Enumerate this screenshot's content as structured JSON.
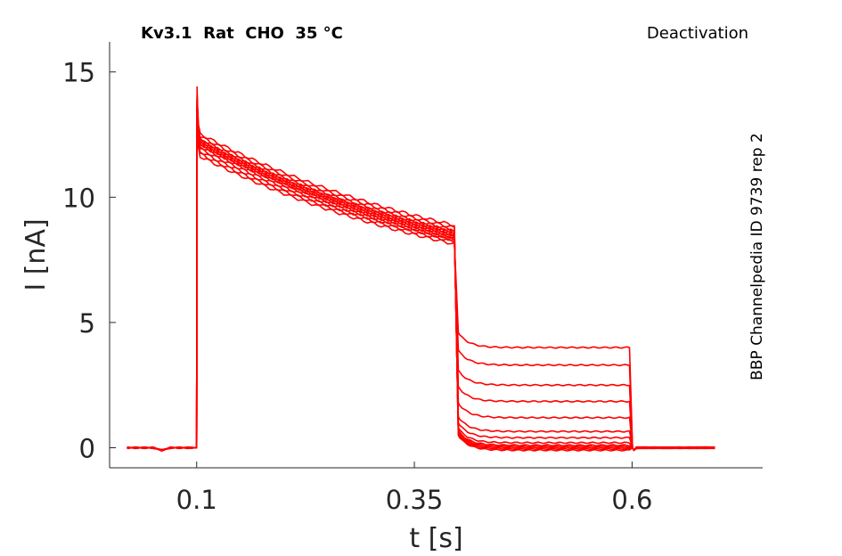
{
  "chart_data": {
    "type": "line",
    "title": "Kv3.1  Rat  CHO  35 °C",
    "protocol": "Deactivation",
    "side_label": "BBP Channelpedia ID 9739 rep 2",
    "xlabel": "t [s]",
    "ylabel": "I [nA]",
    "xlim": [
      -0.0,
      0.75
    ],
    "ylim": [
      -0.8,
      16.2
    ],
    "x_ticks": [
      0.1,
      0.35,
      0.6
    ],
    "x_tick_labels": [
      "0.1",
      "0.35",
      "0.6"
    ],
    "y_ticks": [
      0,
      5,
      10,
      15
    ],
    "y_tick_labels": [
      "0",
      "5",
      "10",
      "15"
    ],
    "grid": false,
    "color": "#ff0000",
    "activation_step": {
      "t_on": 0.1,
      "t_off": 0.4,
      "peak_transient": 14.4
    },
    "tail_step": {
      "t_on": 0.4,
      "t_off": 0.6
    },
    "series": [
      {
        "activation_start": 11.7,
        "activation_end": 8.1,
        "tail_level": 4.0
      },
      {
        "activation_start": 11.8,
        "activation_end": 8.2,
        "tail_level": 3.3
      },
      {
        "activation_start": 11.9,
        "activation_end": 8.25,
        "tail_level": 2.5
      },
      {
        "activation_start": 12.0,
        "activation_end": 8.3,
        "tail_level": 1.85
      },
      {
        "activation_start": 12.1,
        "activation_end": 8.35,
        "tail_level": 1.2
      },
      {
        "activation_start": 12.15,
        "activation_end": 8.4,
        "tail_level": 0.65
      },
      {
        "activation_start": 12.2,
        "activation_end": 8.45,
        "tail_level": 0.4
      },
      {
        "activation_start": 12.25,
        "activation_end": 8.5,
        "tail_level": 0.2
      },
      {
        "activation_start": 12.3,
        "activation_end": 8.55,
        "tail_level": 0.1
      },
      {
        "activation_start": 12.35,
        "activation_end": 8.6,
        "tail_level": 0.05
      },
      {
        "activation_start": 12.4,
        "activation_end": 8.65,
        "tail_level": 0.0
      },
      {
        "activation_start": 12.5,
        "activation_end": 8.75,
        "tail_level": -0.05
      },
      {
        "activation_start": 12.6,
        "activation_end": 8.85,
        "tail_level": -0.1
      }
    ]
  }
}
